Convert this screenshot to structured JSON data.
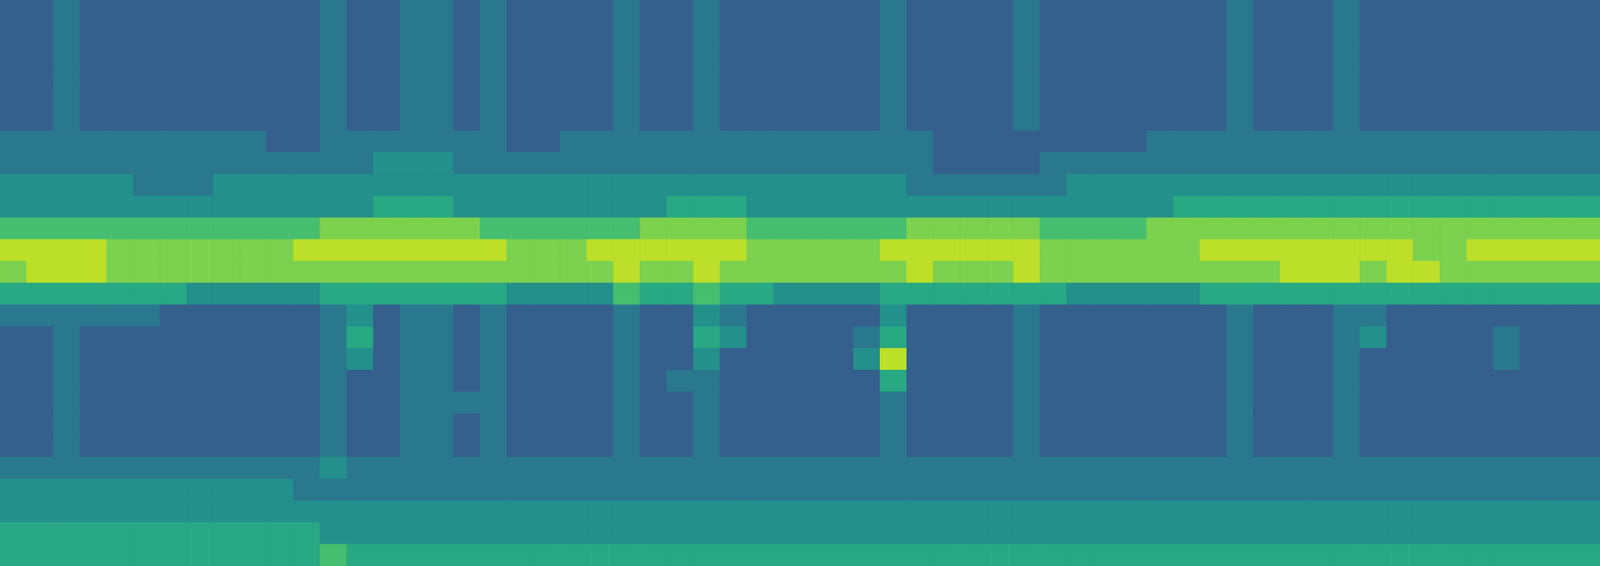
{
  "chart_data": {
    "type": "heatmap",
    "tick_labels": false,
    "zlim": [
      0,
      10
    ],
    "cells": [
      [
        3,
        3,
        4,
        3,
        3,
        3,
        3,
        3,
        3,
        3,
        3,
        3,
        4,
        3,
        3,
        4,
        4,
        3,
        4,
        3,
        3,
        3,
        3,
        4,
        3,
        3,
        4,
        3,
        3,
        3,
        3,
        3,
        3,
        4,
        3,
        3,
        3,
        3,
        4,
        3,
        3,
        3,
        3,
        3,
        3,
        3,
        4,
        3,
        3,
        3,
        4,
        3,
        3,
        3,
        3,
        3,
        3,
        3,
        3,
        3
      ],
      [
        3,
        3,
        4,
        3,
        3,
        3,
        3,
        3,
        3,
        3,
        3,
        3,
        4,
        3,
        3,
        4,
        4,
        3,
        4,
        3,
        3,
        3,
        3,
        4,
        3,
        3,
        4,
        3,
        3,
        3,
        3,
        3,
        3,
        4,
        3,
        3,
        3,
        3,
        4,
        3,
        3,
        3,
        3,
        3,
        3,
        3,
        4,
        3,
        3,
        3,
        4,
        3,
        3,
        3,
        3,
        3,
        3,
        3,
        3,
        3
      ],
      [
        3,
        3,
        4,
        3,
        3,
        3,
        3,
        3,
        3,
        3,
        3,
        3,
        4,
        3,
        3,
        4,
        4,
        3,
        4,
        3,
        3,
        3,
        3,
        4,
        3,
        3,
        4,
        3,
        3,
        3,
        3,
        3,
        3,
        4,
        3,
        3,
        3,
        3,
        4,
        3,
        3,
        3,
        3,
        3,
        3,
        3,
        4,
        3,
        3,
        3,
        4,
        3,
        3,
        3,
        3,
        3,
        3,
        3,
        3,
        3
      ],
      [
        3,
        3,
        4,
        3,
        3,
        3,
        3,
        3,
        3,
        3,
        3,
        3,
        4,
        3,
        3,
        4,
        4,
        3,
        4,
        3,
        3,
        3,
        3,
        4,
        3,
        3,
        4,
        3,
        3,
        3,
        3,
        3,
        3,
        4,
        3,
        3,
        3,
        3,
        4,
        3,
        3,
        3,
        3,
        3,
        3,
        3,
        4,
        3,
        3,
        3,
        4,
        3,
        3,
        3,
        3,
        3,
        3,
        3,
        3,
        3
      ],
      [
        3,
        3,
        4,
        3,
        3,
        3,
        3,
        3,
        3,
        3,
        3,
        3,
        4,
        3,
        3,
        4,
        4,
        3,
        4,
        3,
        3,
        3,
        3,
        4,
        3,
        3,
        4,
        3,
        3,
        3,
        3,
        3,
        3,
        4,
        3,
        3,
        3,
        3,
        4,
        3,
        3,
        3,
        3,
        3,
        3,
        3,
        4,
        3,
        3,
        3,
        4,
        3,
        3,
        3,
        3,
        3,
        3,
        3,
        3,
        3
      ],
      [
        3,
        3,
        4,
        3,
        3,
        3,
        3,
        3,
        3,
        3,
        3,
        3,
        4,
        3,
        3,
        4,
        4,
        3,
        4,
        3,
        3,
        3,
        3,
        4,
        3,
        3,
        4,
        3,
        3,
        3,
        3,
        3,
        3,
        4,
        3,
        3,
        3,
        3,
        4,
        3,
        3,
        3,
        3,
        3,
        3,
        3,
        4,
        3,
        3,
        3,
        4,
        3,
        3,
        3,
        3,
        3,
        3,
        3,
        3,
        3
      ],
      [
        4,
        4,
        4,
        4,
        4,
        4,
        4,
        4,
        4,
        4,
        3,
        3,
        4,
        4,
        4,
        4,
        4,
        4,
        4,
        3,
        3,
        4,
        4,
        4,
        4,
        4,
        4,
        4,
        4,
        4,
        4,
        4,
        4,
        4,
        4,
        3,
        3,
        3,
        3,
        3,
        3,
        3,
        3,
        4,
        4,
        4,
        4,
        4,
        4,
        4,
        4,
        4,
        4,
        4,
        4,
        4,
        4,
        4,
        4,
        4
      ],
      [
        4,
        4,
        4,
        4,
        4,
        4,
        4,
        4,
        4,
        4,
        4,
        4,
        4,
        4,
        5,
        5,
        5,
        4,
        4,
        4,
        4,
        4,
        4,
        4,
        4,
        4,
        4,
        4,
        4,
        4,
        4,
        4,
        4,
        4,
        4,
        3,
        3,
        3,
        3,
        4,
        4,
        4,
        4,
        4,
        4,
        4,
        4,
        4,
        4,
        4,
        4,
        4,
        4,
        4,
        4,
        4,
        4,
        4,
        4,
        4
      ],
      [
        5,
        5,
        5,
        5,
        5,
        4,
        4,
        4,
        5,
        5,
        5,
        5,
        5,
        5,
        5,
        5,
        5,
        5,
        5,
        5,
        5,
        5,
        5,
        5,
        5,
        5,
        5,
        5,
        5,
        5,
        5,
        5,
        5,
        5,
        4,
        4,
        4,
        4,
        4,
        4,
        5,
        5,
        5,
        5,
        5,
        5,
        5,
        5,
        5,
        5,
        5,
        5,
        5,
        5,
        5,
        5,
        5,
        5,
        5,
        5
      ],
      [
        5,
        5,
        5,
        5,
        5,
        5,
        5,
        5,
        5,
        5,
        5,
        5,
        5,
        5,
        6,
        6,
        6,
        5,
        5,
        5,
        5,
        5,
        5,
        5,
        5,
        6,
        6,
        6,
        5,
        5,
        5,
        5,
        5,
        5,
        5,
        5,
        5,
        5,
        5,
        5,
        5,
        5,
        5,
        5,
        6,
        6,
        6,
        6,
        6,
        6,
        6,
        6,
        6,
        6,
        6,
        6,
        6,
        6,
        6,
        6
      ],
      [
        7,
        7,
        7,
        7,
        7,
        7,
        7,
        7,
        7,
        7,
        7,
        7,
        8,
        8,
        8,
        8,
        8,
        8,
        7,
        7,
        7,
        7,
        7,
        7,
        8,
        8,
        8,
        8,
        7,
        7,
        7,
        7,
        7,
        7,
        8,
        8,
        8,
        8,
        8,
        7,
        7,
        7,
        7,
        8,
        8,
        8,
        8,
        8,
        8,
        8,
        8,
        8,
        8,
        8,
        8,
        8,
        8,
        8,
        8,
        8
      ],
      [
        9,
        9,
        9,
        9,
        8,
        8,
        8,
        8,
        8,
        8,
        8,
        9,
        9,
        9,
        9,
        9,
        9,
        9,
        9,
        8,
        8,
        8,
        9,
        9,
        9,
        9,
        9,
        9,
        8,
        8,
        8,
        8,
        8,
        9,
        9,
        9,
        9,
        9,
        9,
        8,
        8,
        8,
        8,
        8,
        8,
        9,
        9,
        9,
        9,
        9,
        9,
        9,
        9,
        8,
        8,
        9,
        9,
        9,
        9,
        9
      ],
      [
        8,
        9,
        9,
        9,
        8,
        8,
        8,
        8,
        8,
        8,
        8,
        8,
        8,
        8,
        8,
        8,
        8,
        8,
        8,
        8,
        8,
        8,
        8,
        9,
        8,
        8,
        9,
        8,
        8,
        8,
        8,
        8,
        8,
        8,
        9,
        8,
        8,
        8,
        9,
        8,
        8,
        8,
        8,
        8,
        8,
        8,
        8,
        8,
        9,
        9,
        9,
        8,
        9,
        9,
        8,
        8,
        8,
        8,
        8,
        8
      ],
      [
        6,
        6,
        6,
        6,
        6,
        6,
        6,
        5,
        5,
        5,
        5,
        5,
        6,
        6,
        6,
        6,
        6,
        6,
        6,
        5,
        5,
        5,
        5,
        7,
        6,
        6,
        7,
        6,
        6,
        5,
        5,
        5,
        5,
        6,
        6,
        6,
        6,
        6,
        6,
        6,
        5,
        5,
        5,
        5,
        5,
        6,
        6,
        6,
        6,
        6,
        6,
        6,
        6,
        6,
        6,
        6,
        6,
        6,
        6,
        6
      ],
      [
        4,
        4,
        4,
        4,
        4,
        4,
        3,
        3,
        3,
        3,
        3,
        3,
        4,
        5,
        3,
        4,
        4,
        3,
        4,
        3,
        3,
        3,
        3,
        4,
        3,
        3,
        5,
        4,
        3,
        3,
        3,
        3,
        3,
        5,
        3,
        3,
        3,
        3,
        4,
        3,
        3,
        3,
        3,
        3,
        3,
        3,
        4,
        3,
        3,
        3,
        4,
        4,
        3,
        3,
        3,
        3,
        3,
        3,
        3,
        3
      ],
      [
        3,
        3,
        4,
        3,
        3,
        3,
        3,
        3,
        3,
        3,
        3,
        3,
        4,
        6,
        3,
        4,
        4,
        3,
        4,
        3,
        3,
        3,
        3,
        4,
        3,
        3,
        6,
        5,
        3,
        3,
        3,
        3,
        4,
        6,
        3,
        3,
        3,
        3,
        4,
        3,
        3,
        3,
        3,
        3,
        3,
        3,
        4,
        3,
        3,
        3,
        4,
        5,
        3,
        3,
        3,
        3,
        4,
        3,
        3,
        3
      ],
      [
        3,
        3,
        4,
        3,
        3,
        3,
        3,
        3,
        3,
        3,
        3,
        3,
        4,
        5,
        3,
        4,
        4,
        3,
        4,
        3,
        3,
        3,
        3,
        4,
        3,
        3,
        5,
        3,
        3,
        3,
        3,
        3,
        5,
        9,
        3,
        3,
        3,
        3,
        4,
        3,
        3,
        3,
        3,
        3,
        3,
        3,
        4,
        3,
        3,
        3,
        4,
        3,
        3,
        3,
        3,
        3,
        4,
        3,
        3,
        3
      ],
      [
        3,
        3,
        4,
        3,
        3,
        3,
        3,
        3,
        3,
        3,
        3,
        3,
        4,
        3,
        3,
        4,
        4,
        3,
        4,
        3,
        3,
        3,
        3,
        4,
        3,
        4,
        4,
        3,
        3,
        3,
        3,
        3,
        3,
        6,
        3,
        3,
        3,
        3,
        4,
        3,
        3,
        3,
        3,
        3,
        3,
        3,
        4,
        3,
        3,
        3,
        4,
        3,
        3,
        3,
        3,
        3,
        3,
        3,
        3,
        3
      ],
      [
        3,
        3,
        4,
        3,
        3,
        3,
        3,
        3,
        3,
        3,
        3,
        3,
        4,
        3,
        3,
        4,
        4,
        4,
        4,
        3,
        3,
        3,
        3,
        4,
        3,
        3,
        4,
        3,
        3,
        3,
        3,
        3,
        3,
        4,
        3,
        3,
        3,
        3,
        4,
        3,
        3,
        3,
        3,
        3,
        3,
        3,
        4,
        3,
        3,
        3,
        4,
        3,
        3,
        3,
        3,
        3,
        3,
        3,
        3,
        3
      ],
      [
        3,
        3,
        4,
        3,
        3,
        3,
        3,
        3,
        3,
        3,
        3,
        3,
        4,
        3,
        3,
        4,
        4,
        3,
        4,
        3,
        3,
        3,
        3,
        4,
        3,
        3,
        4,
        3,
        3,
        3,
        3,
        3,
        3,
        4,
        3,
        3,
        3,
        3,
        4,
        3,
        3,
        3,
        3,
        3,
        3,
        3,
        4,
        3,
        3,
        3,
        4,
        3,
        3,
        3,
        3,
        3,
        3,
        3,
        3,
        3
      ],
      [
        3,
        3,
        4,
        3,
        3,
        3,
        3,
        3,
        3,
        3,
        3,
        3,
        4,
        3,
        3,
        4,
        4,
        3,
        4,
        3,
        3,
        3,
        3,
        4,
        3,
        3,
        4,
        3,
        3,
        3,
        3,
        3,
        3,
        4,
        3,
        3,
        3,
        3,
        4,
        3,
        3,
        3,
        3,
        3,
        3,
        3,
        4,
        3,
        3,
        3,
        4,
        3,
        3,
        3,
        3,
        3,
        3,
        3,
        3,
        3
      ],
      [
        4,
        4,
        4,
        4,
        4,
        4,
        4,
        4,
        4,
        4,
        4,
        4,
        5,
        4,
        4,
        4,
        4,
        4,
        4,
        4,
        4,
        4,
        4,
        4,
        4,
        4,
        4,
        4,
        4,
        4,
        4,
        4,
        4,
        4,
        4,
        4,
        4,
        4,
        4,
        4,
        4,
        4,
        4,
        4,
        4,
        4,
        4,
        4,
        4,
        4,
        4,
        4,
        4,
        4,
        4,
        4,
        4,
        4,
        4,
        4
      ],
      [
        5,
        5,
        5,
        5,
        5,
        5,
        5,
        5,
        5,
        5,
        5,
        4,
        4,
        4,
        4,
        4,
        4,
        4,
        4,
        4,
        4,
        4,
        4,
        4,
        4,
        4,
        4,
        4,
        4,
        4,
        4,
        4,
        4,
        4,
        4,
        4,
        4,
        4,
        4,
        4,
        4,
        4,
        4,
        4,
        4,
        4,
        4,
        4,
        4,
        4,
        4,
        4,
        4,
        4,
        4,
        4,
        4,
        4,
        4,
        4
      ],
      [
        5,
        5,
        5,
        5,
        5,
        5,
        5,
        5,
        5,
        5,
        5,
        5,
        5,
        5,
        5,
        5,
        5,
        5,
        5,
        5,
        5,
        5,
        5,
        5,
        5,
        5,
        5,
        5,
        5,
        5,
        5,
        5,
        5,
        5,
        5,
        5,
        5,
        5,
        5,
        5,
        5,
        5,
        5,
        5,
        5,
        5,
        5,
        5,
        5,
        5,
        5,
        5,
        5,
        5,
        5,
        5,
        5,
        5,
        5,
        5
      ],
      [
        6,
        6,
        6,
        6,
        6,
        6,
        6,
        6,
        6,
        6,
        6,
        6,
        5,
        5,
        5,
        5,
        5,
        5,
        5,
        5,
        5,
        5,
        5,
        5,
        5,
        5,
        5,
        5,
        5,
        5,
        5,
        5,
        5,
        5,
        5,
        5,
        5,
        5,
        5,
        5,
        5,
        5,
        5,
        5,
        5,
        5,
        5,
        5,
        5,
        5,
        5,
        5,
        5,
        5,
        5,
        5,
        5,
        5,
        5,
        5
      ],
      [
        6,
        6,
        6,
        6,
        6,
        6,
        6,
        6,
        6,
        6,
        6,
        6,
        7,
        6,
        6,
        6,
        6,
        6,
        6,
        6,
        6,
        6,
        6,
        6,
        6,
        6,
        6,
        6,
        6,
        6,
        6,
        6,
        6,
        6,
        6,
        6,
        6,
        6,
        6,
        6,
        6,
        6,
        6,
        6,
        6,
        6,
        6,
        6,
        6,
        6,
        6,
        6,
        6,
        6,
        6,
        6,
        6,
        6,
        6,
        6
      ]
    ]
  }
}
